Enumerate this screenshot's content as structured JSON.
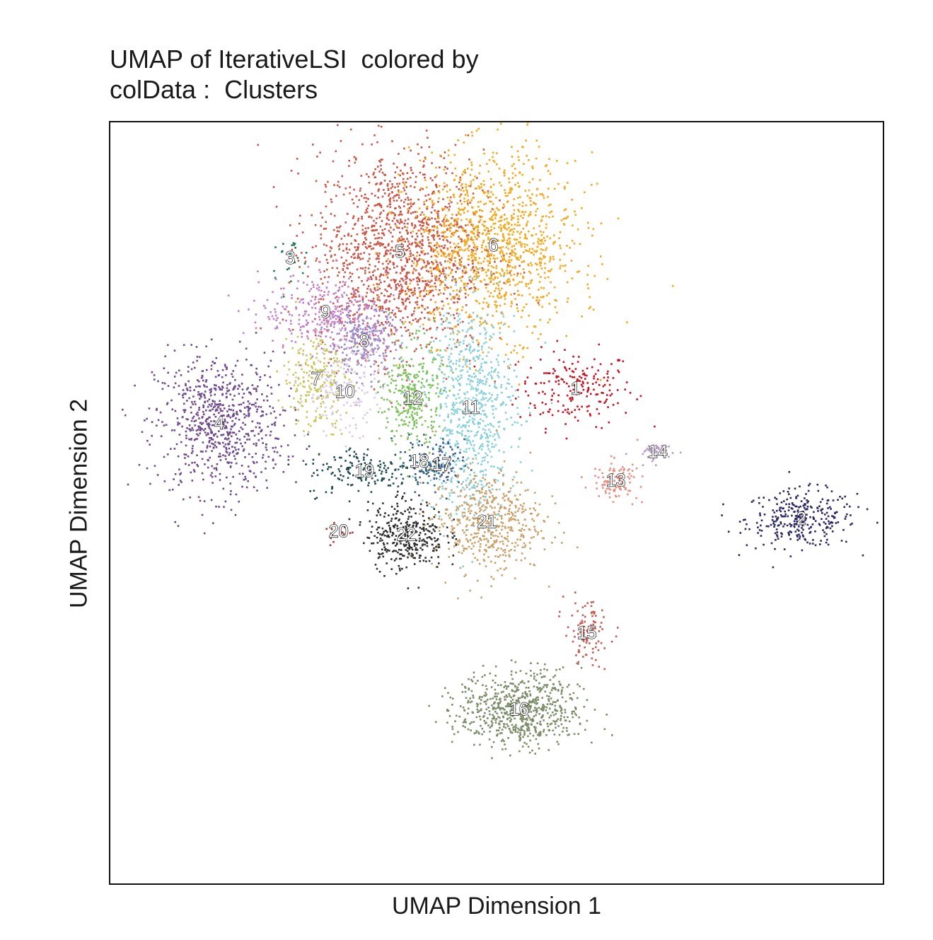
{
  "chart_data": {
    "type": "scatter",
    "title_line1": "UMAP of IterativeLSI  colored by",
    "title_line2": "colData :  Clusters",
    "xlabel": "UMAP Dimension 1",
    "ylabel": "UMAP Dimension 2",
    "xlim": [
      -12,
      12
    ],
    "ylim": [
      -12,
      12
    ],
    "grid": false,
    "legend": "none",
    "clusters": [
      {
        "label": "1",
        "x": 2.45,
        "y": 3.6,
        "sx": 0.9,
        "sy": 0.6,
        "n": 600,
        "color": "#D51F26"
      },
      {
        "label": "2",
        "x": 9.45,
        "y": -0.5,
        "sx": 0.85,
        "sy": 0.45,
        "n": 900,
        "color": "#272E6A"
      },
      {
        "label": "3",
        "x": -6.4,
        "y": 7.7,
        "sx": 0.35,
        "sy": 0.3,
        "n": 70,
        "color": "#208A42"
      },
      {
        "label": "4",
        "x": -8.6,
        "y": 2.5,
        "sx": 1.0,
        "sy": 1.1,
        "n": 2200,
        "color": "#89288F"
      },
      {
        "label": "5",
        "x": -3.0,
        "y": 7.9,
        "sx": 1.3,
        "sy": 1.6,
        "n": 4200,
        "color": "#F47D2B"
      },
      {
        "label": "6",
        "x": -0.1,
        "y": 8.1,
        "sx": 1.3,
        "sy": 1.4,
        "n": 3600,
        "color": "#FEE500"
      },
      {
        "label": "7",
        "x": -5.6,
        "y": 3.9,
        "sx": 0.5,
        "sy": 0.8,
        "n": 700,
        "color": "#8A9FD1"
      },
      {
        "label": "8",
        "x": -4.1,
        "y": 5.1,
        "sx": 0.55,
        "sy": 0.55,
        "n": 800,
        "color": "#C06CAB"
      },
      {
        "label": "9",
        "x": -5.3,
        "y": 6.0,
        "sx": 1.0,
        "sy": 0.6,
        "n": 900,
        "color": "#E6C2DC"
      },
      {
        "label": "10",
        "x": -4.7,
        "y": 3.5,
        "sx": 0.6,
        "sy": 0.7,
        "n": 500,
        "color": "#90D5E4"
      },
      {
        "label": "11",
        "x": -0.8,
        "y": 3.0,
        "sx": 0.7,
        "sy": 1.7,
        "n": 2200,
        "color": "#89C75F"
      },
      {
        "label": "12",
        "x": -2.6,
        "y": 3.3,
        "sx": 0.45,
        "sy": 0.9,
        "n": 900,
        "color": "#F37B7D"
      },
      {
        "label": "13",
        "x": 3.7,
        "y": 0.7,
        "sx": 0.35,
        "sy": 0.3,
        "n": 300,
        "color": "#9983BD"
      },
      {
        "label": "14",
        "x": 5.0,
        "y": 1.6,
        "sx": 0.35,
        "sy": 0.15,
        "n": 120,
        "color": "#D24B27"
      },
      {
        "label": "15",
        "x": 2.8,
        "y": -4.1,
        "sx": 0.35,
        "sy": 0.5,
        "n": 300,
        "color": "#3BBCA8"
      },
      {
        "label": "16",
        "x": 0.7,
        "y": -6.5,
        "sx": 0.95,
        "sy": 0.6,
        "n": 2000,
        "color": "#6E4B9E"
      },
      {
        "label": "17",
        "x": -1.7,
        "y": 1.2,
        "sx": 0.35,
        "sy": 0.4,
        "n": 250,
        "color": "#0C727C"
      },
      {
        "label": "18",
        "x": -2.4,
        "y": 1.3,
        "sx": 0.35,
        "sy": 0.4,
        "n": 200,
        "color": "#7E1416"
      },
      {
        "label": "19",
        "x": -4.1,
        "y": 1.0,
        "sx": 0.9,
        "sy": 0.4,
        "n": 450,
        "color": "#D8A767"
      },
      {
        "label": "20",
        "x": -4.9,
        "y": -0.9,
        "sx": 0.25,
        "sy": 0.2,
        "n": 50,
        "color": "#3D3D3D"
      },
      {
        "label": "21",
        "x": -0.3,
        "y": -0.6,
        "sx": 0.85,
        "sy": 0.8,
        "n": 1500,
        "color": "#C5A869"
      },
      {
        "label": "22",
        "x": -2.8,
        "y": -1.0,
        "sx": 0.6,
        "sy": 0.55,
        "n": 1000,
        "color": "#3A3A3A"
      }
    ],
    "colors_override": {
      "1": "#C8101F",
      "2": "#2A2763",
      "3": "#1D7A4E",
      "4": "#6E4A8C",
      "5": "#CC5446",
      "6": "#F4A81C",
      "7": "#C9C55A",
      "8": "#9B86C8",
      "9": "#C47DC4",
      "10": "#D8C9E2",
      "11": "#86D0DA",
      "12": "#7CC25A",
      "13": "#E58F80",
      "14": "#B79BC8",
      "15": "#C45A52",
      "16": "#7B8C67",
      "17": "#3E5C8E",
      "18": "#2F5E7A",
      "19": "#1F4B4E",
      "20": "#9E3A32",
      "21": "#C9A068",
      "22": "#2F2F2F"
    }
  }
}
